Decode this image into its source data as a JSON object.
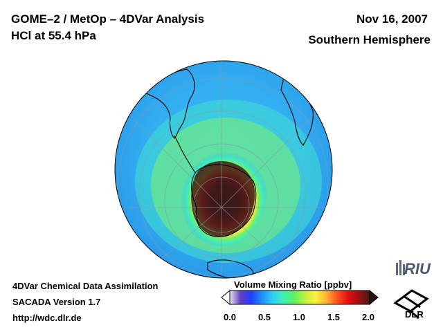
{
  "header": {
    "title_line1": "GOME–2 / MetOp – 4DVar Analysis",
    "title_line2": "HCl at 55.4 hPa",
    "date": "Nov 16, 2007",
    "region": "Southern Hemisphere"
  },
  "footer": {
    "line1": "4DVar Chemical Data Assimilation",
    "line2": "SACADA Version 1.7",
    "line3": "http://wdc.dlr.de"
  },
  "colorbar": {
    "title": "Volume Mixing Ratio [ppbv]",
    "ticks": [
      "0.0",
      "0.5",
      "1.0",
      "1.5",
      "2.0"
    ],
    "min": 0.0,
    "max": 2.0,
    "colors": [
      "#e8e0f0",
      "#6040c0",
      "#2040ff",
      "#2090ff",
      "#30d0f0",
      "#40f0b0",
      "#60f060",
      "#c0f040",
      "#fff040",
      "#ffb030",
      "#ff5020",
      "#e01010",
      "#a01010",
      "#401818"
    ]
  },
  "logos": {
    "riu": "RIU",
    "dlr": "DLR"
  },
  "map": {
    "projection": "orthographic",
    "hemisphere": "southern",
    "field": "HCl volume mixing ratio",
    "background_level_ppbv": 0.45
  }
}
